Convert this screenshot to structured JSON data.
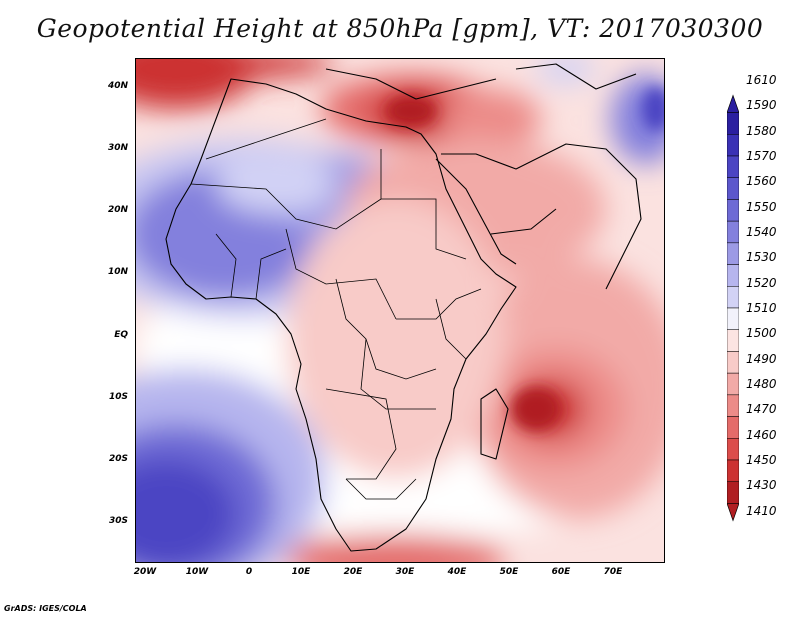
{
  "title": "Geopotential Height at 850hPa [gpm], VT: 2017030300",
  "latitude_labels": [
    "40N",
    "30N",
    "20N",
    "10N",
    "EQ",
    "10S",
    "20S",
    "30S"
  ],
  "longitude_labels": [
    "20W",
    "10W",
    "0",
    "10E",
    "20E",
    "30E",
    "40E",
    "50E",
    "60E",
    "70E"
  ],
  "map_extent": {
    "lon_min": -22,
    "lon_max": 80,
    "lat_min": -37,
    "lat_max": 45
  },
  "colorbar": {
    "levels": [
      "1610",
      "1590",
      "1580",
      "1570",
      "1560",
      "1550",
      "1540",
      "1530",
      "1520",
      "1510",
      "1500",
      "1490",
      "1480",
      "1470",
      "1460",
      "1450",
      "1430",
      "1410"
    ],
    "colors_top_to_bottom": [
      "#2b1fa0",
      "#3a31b5",
      "#4b44c3",
      "#5c57cc",
      "#6e6ad5",
      "#8380dd",
      "#9c9ae5",
      "#b6b5ee",
      "#d2d2f5",
      "#f2f2fb",
      "#fce4e2",
      "#f8cbc8",
      "#f2aaa7",
      "#ec8b88",
      "#e46b69",
      "#dc4d4b",
      "#cc3232",
      "#b01e22"
    ]
  },
  "credit": "GrADS: IGES/COLA"
}
